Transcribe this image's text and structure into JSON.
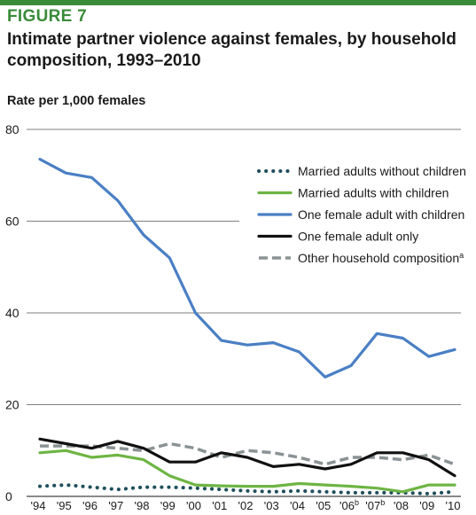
{
  "figure_label": "FIGURE 7",
  "chart_data": {
    "type": "line",
    "title": "Intimate partner violence against females, by household composition, 1993–2010",
    "ylabel": "Rate per 1,000 females",
    "xlabel": "",
    "ylim": [
      0,
      80
    ],
    "y_ticks": [
      "0",
      "20",
      "40",
      "60",
      "80"
    ],
    "categories": [
      "'94",
      "'95",
      "'96",
      "'97",
      "'98",
      "'99",
      "'00",
      "'01",
      "'02",
      "'03",
      "'04",
      "'05",
      "'06",
      "'07",
      "'08",
      "'09",
      "'10"
    ],
    "category_superscripts": [
      "",
      "",
      "",
      "",
      "",
      "",
      "",
      "",
      "",
      "",
      "",
      "",
      "b",
      "b",
      "",
      "",
      ""
    ],
    "grid": "horizontal",
    "legend_position": "top-right",
    "series": [
      {
        "name": "Married adults without children",
        "name_superscript": "",
        "color": "#1e4f5c",
        "style": "dotted",
        "values": [
          2.2,
          2.5,
          2.0,
          1.5,
          2.0,
          2.0,
          1.8,
          1.5,
          1.2,
          1.0,
          1.2,
          1.0,
          0.8,
          0.8,
          0.8,
          0.6,
          1.0
        ]
      },
      {
        "name": "Married adults with children",
        "name_superscript": "",
        "color": "#6db544",
        "style": "solid",
        "values": [
          9.5,
          10.0,
          8.5,
          9.0,
          8.0,
          4.5,
          2.5,
          2.3,
          2.2,
          2.2,
          2.8,
          2.5,
          2.2,
          1.8,
          1.0,
          2.5,
          2.5
        ]
      },
      {
        "name": "One female adult with children",
        "name_superscript": "",
        "color": "#4a7fc4",
        "style": "solid",
        "values": [
          73.5,
          70.5,
          69.5,
          64.5,
          57.0,
          52.0,
          40.0,
          34.0,
          33.0,
          33.5,
          31.5,
          26.0,
          28.5,
          35.5,
          34.5,
          30.5,
          32.0
        ]
      },
      {
        "name": "One female adult only",
        "name_superscript": "",
        "color": "#111111",
        "style": "solid",
        "values": [
          12.5,
          11.5,
          10.5,
          12.0,
          10.5,
          7.5,
          7.5,
          9.5,
          8.5,
          6.5,
          7.0,
          6.0,
          7.0,
          9.5,
          9.5,
          8.0,
          4.5
        ]
      },
      {
        "name": "Other household composition",
        "name_superscript": "a",
        "color": "#8a9294",
        "style": "dashed",
        "values": [
          11.0,
          11.0,
          11.0,
          10.5,
          10.0,
          11.5,
          10.5,
          8.5,
          10.0,
          9.5,
          8.5,
          7.0,
          8.5,
          8.5,
          8.0,
          9.0,
          7.0
        ]
      }
    ]
  }
}
